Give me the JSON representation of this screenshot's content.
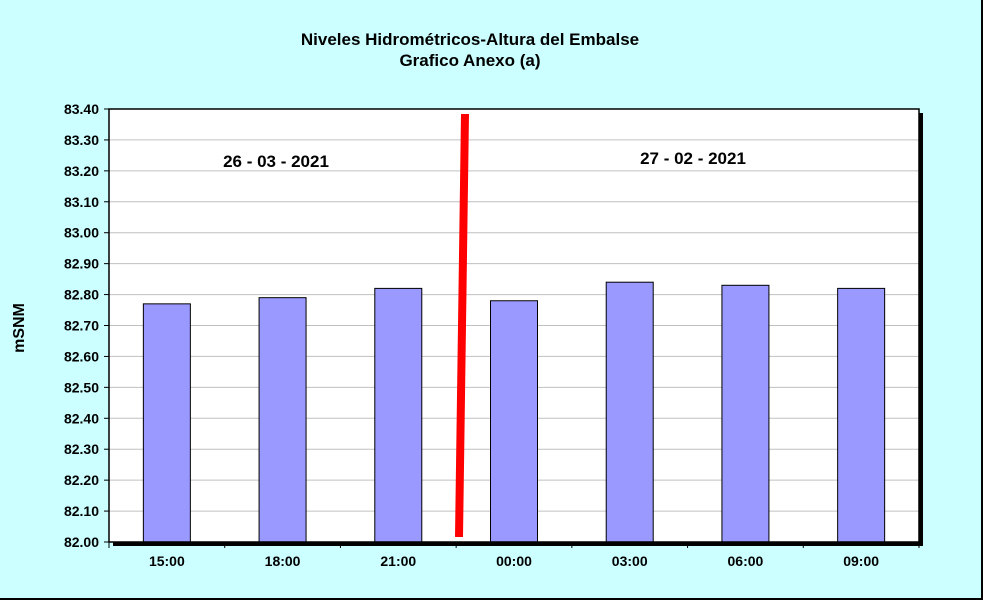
{
  "chart_data": {
    "type": "bar",
    "title": "Niveles Hidrométricos-Altura del Embalse",
    "subtitle": "Grafico Anexo (a)",
    "xlabel": "",
    "ylabel": "mSNM",
    "categories": [
      "15:00",
      "18:00",
      "21:00",
      "00:00",
      "03:00",
      "06:00",
      "09:00"
    ],
    "values": [
      82.77,
      82.79,
      82.82,
      82.78,
      82.84,
      82.83,
      82.82
    ],
    "ylim": [
      82.0,
      83.4
    ],
    "yticks": [
      "82.00",
      "82.10",
      "82.20",
      "82.30",
      "82.40",
      "82.50",
      "82.60",
      "82.70",
      "82.80",
      "82.90",
      "83.00",
      "83.10",
      "83.20",
      "83.30",
      "83.40"
    ],
    "grid": true,
    "legend": "none",
    "annotations": [
      "26 - 03 - 2021",
      "27 - 02 - 2021"
    ],
    "bar_color": "#9999ff",
    "divider_color": "#ff0000",
    "background_color": "#ccffff"
  }
}
